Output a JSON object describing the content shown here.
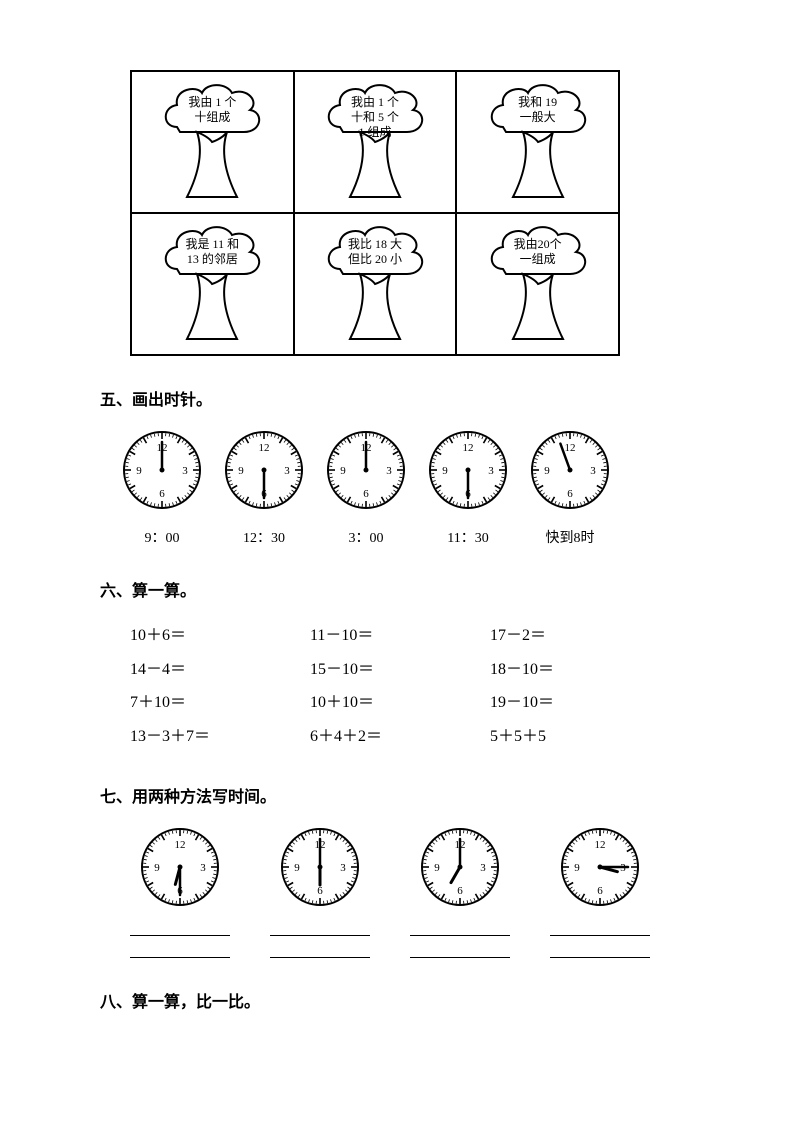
{
  "trees": [
    {
      "id": 0,
      "text_lines": [
        "我由 1 个",
        "十组成"
      ]
    },
    {
      "id": 1,
      "text_lines": [
        "我由 1 个",
        "十和 5 个",
        "1 组成"
      ]
    },
    {
      "id": 2,
      "text_lines": [
        "我和 19",
        "一般大"
      ]
    },
    {
      "id": 3,
      "text_lines": [
        "我是 11 和",
        "13 的邻居"
      ]
    },
    {
      "id": 4,
      "text_lines": [
        "我比 18 大",
        "但比 20 小"
      ]
    },
    {
      "id": 5,
      "text_lines": [
        "我由20个",
        "一组成"
      ]
    }
  ],
  "section5": {
    "heading": "五、画出时针。",
    "clocks": [
      {
        "label": "9：00",
        "minute_angle": 0,
        "minute_len": 28,
        "show_hour": false
      },
      {
        "label": "12：30",
        "minute_angle": 180,
        "minute_len": 28,
        "show_hour": false
      },
      {
        "label": "3：00",
        "minute_angle": 0,
        "minute_len": 28,
        "show_hour": false
      },
      {
        "label": "11：30",
        "minute_angle": 180,
        "minute_len": 28,
        "show_hour": false
      },
      {
        "label": "快到8时",
        "minute_angle": 340,
        "minute_len": 28,
        "show_hour": false
      }
    ],
    "clock_style": {
      "radius": 40,
      "stroke": "#000000",
      "stroke_width": 2,
      "tick_color": "#000000",
      "face_fill": "#ffffff",
      "number_fontsize": 11,
      "hand_width": 2.5
    }
  },
  "section6": {
    "heading": "六、算一算。",
    "rows": [
      [
        "10＋6＝",
        "11－10＝",
        "17－2＝"
      ],
      [
        "14－4＝",
        "15－10＝",
        "18－10＝"
      ],
      [
        "7＋10＝",
        "10＋10＝",
        "19－10＝"
      ],
      [
        "13－3＋7＝",
        "6＋4＋2＝",
        "5＋5＋5"
      ]
    ]
  },
  "section7": {
    "heading": "七、用两种方法写时间。",
    "clocks": [
      {
        "hour_angle": 195,
        "minute_angle": 180,
        "hour_len": 18,
        "minute_len": 28
      },
      {
        "hour_angle": 180,
        "minute_angle": 0,
        "hour_len": 18,
        "minute_len": 28
      },
      {
        "hour_angle": 210,
        "minute_angle": 0,
        "hour_len": 18,
        "minute_len": 28
      },
      {
        "hour_angle": 105,
        "minute_angle": 90,
        "hour_len": 18,
        "minute_len": 28
      }
    ]
  },
  "section8": {
    "heading": "八、算一算，比一比。"
  },
  "colors": {
    "text": "#000000",
    "background": "#ffffff",
    "line": "#000000"
  }
}
